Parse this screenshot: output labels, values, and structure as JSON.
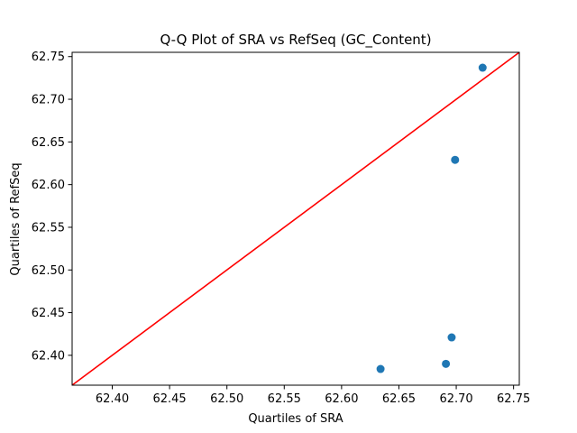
{
  "chart_data": {
    "type": "scatter",
    "title": "Q-Q Plot of SRA vs RefSeq (GC_Content)",
    "xlabel": "Quartiles of SRA",
    "ylabel": "Quartiles of RefSeq",
    "xlim": [
      62.365,
      62.755
    ],
    "ylim": [
      62.365,
      62.755
    ],
    "xticks": [
      "62.40",
      "62.45",
      "62.50",
      "62.55",
      "62.60",
      "62.65",
      "62.70",
      "62.75"
    ],
    "yticks": [
      "62.40",
      "62.45",
      "62.50",
      "62.55",
      "62.60",
      "62.65",
      "62.70",
      "62.75"
    ],
    "grid": false,
    "series": [
      {
        "points": [
          {
            "x": 62.634,
            "y": 62.384
          },
          {
            "x": 62.691,
            "y": 62.39
          },
          {
            "x": 62.696,
            "y": 62.421
          },
          {
            "x": 62.699,
            "y": 62.629
          },
          {
            "x": 62.723,
            "y": 62.737
          }
        ]
      }
    ],
    "reference_line": {
      "from": 62.365,
      "to": 62.755
    },
    "colors": {
      "points": "#1f77b4",
      "reference_line": "#ff0000",
      "axes": "#000000"
    }
  }
}
